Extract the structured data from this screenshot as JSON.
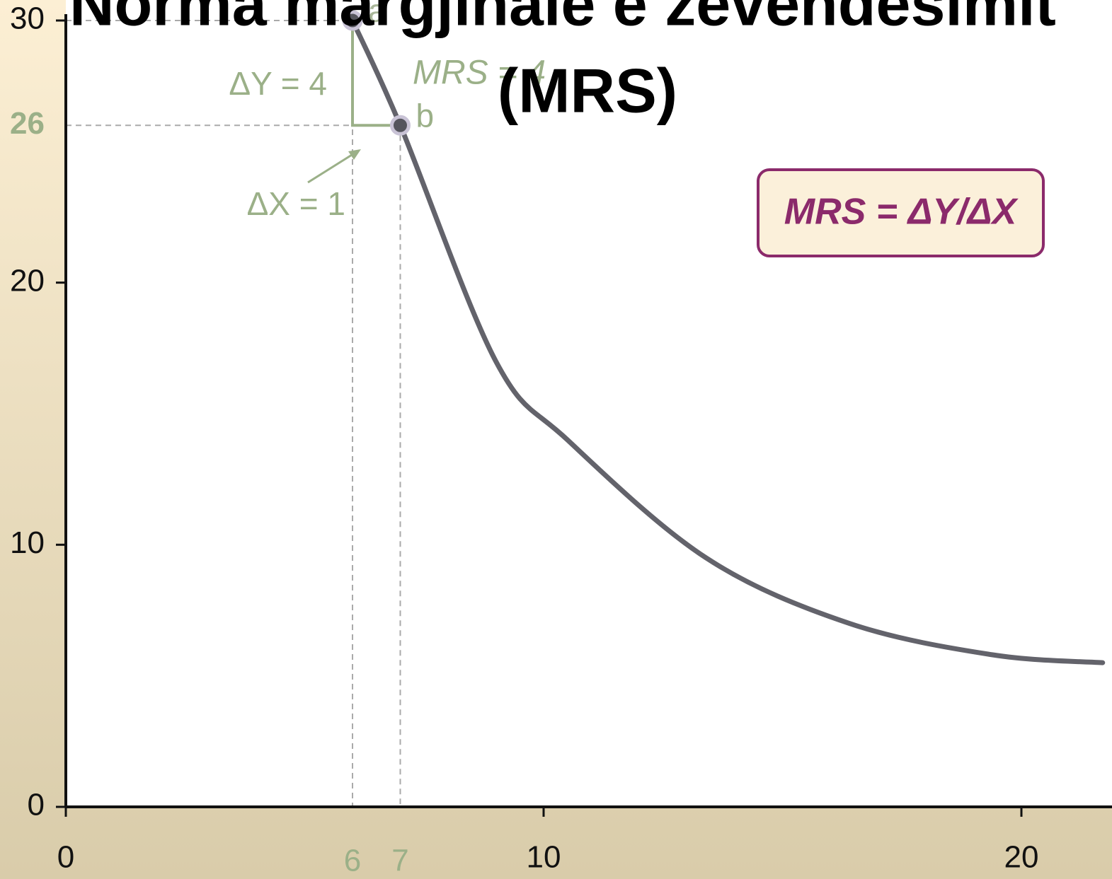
{
  "chart_data": {
    "type": "line",
    "title": [
      "Norma margjinale e zëvendësimit",
      "(MRS)"
    ],
    "xlim": [
      0,
      21.85
    ],
    "ylim": [
      0,
      30
    ],
    "xticks": [
      0,
      10,
      20
    ],
    "yticks": [
      0,
      10,
      20,
      30
    ],
    "highlight_xticks": [
      6,
      7
    ],
    "highlight_yticks": [
      26
    ],
    "series": [
      {
        "color": "#63636b",
        "x": [
          6,
          7,
          9,
          10.5,
          13.4,
          16.4,
          19.4,
          21.7
        ],
        "values": [
          30,
          26,
          17,
          14,
          9.5,
          7,
          5.8,
          5.5
        ]
      }
    ],
    "points": [
      {
        "label": "a",
        "x": 6,
        "y": 30
      },
      {
        "label": "b",
        "x": 7,
        "y": 26
      }
    ],
    "annotations": {
      "delta_y": "ΔY = 4",
      "delta_x": "ΔX = 1",
      "mrs_value": "MRS = 4",
      "formula": "MRS = ΔY/ΔX"
    },
    "annotation_color": "#9bb088",
    "formula_color": "#8b2a6b"
  }
}
